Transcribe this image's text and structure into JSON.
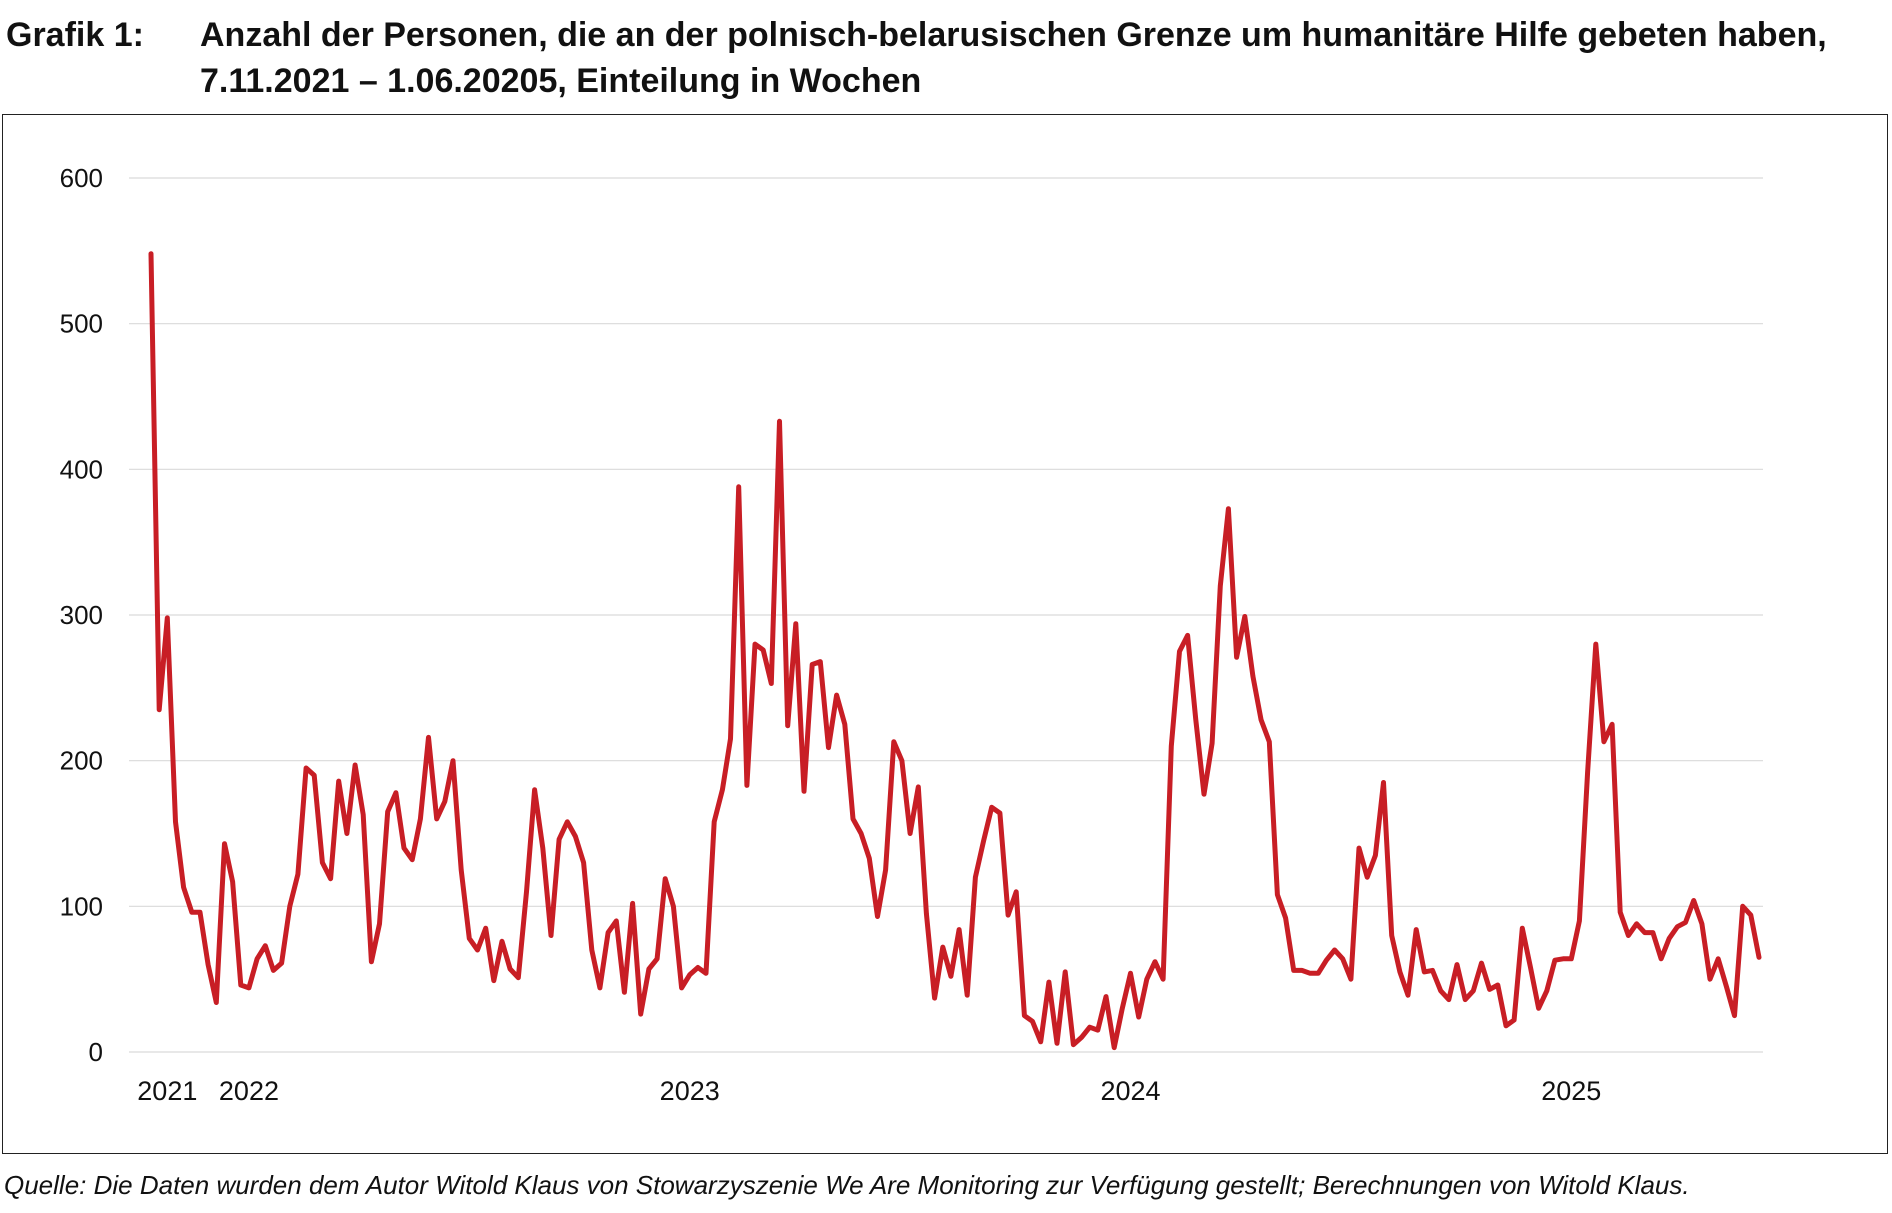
{
  "caption": {
    "label": "Grafik 1:",
    "line1": "Anzahl der Personen, die an der polnisch-belarusischen Grenze um humanitäre Hilfe gebeten haben,",
    "line2": "7.11.2021 – 1.06.20205, Einteilung in Wochen"
  },
  "source": "Quelle: Die Daten wurden dem Autor Witold Klaus von Stowarzyszenie We Are Monitoring zur Verfügung gestellt; Berechnungen von Witold Klaus.",
  "colors": {
    "line": "#c81e25",
    "grid": "#d9d9d9",
    "text": "#111111"
  },
  "chart_data": {
    "type": "line",
    "title": "",
    "xlabel": "",
    "ylabel": "",
    "ylim": [
      0,
      600
    ],
    "yticks": [
      0,
      100,
      200,
      300,
      400,
      500,
      600
    ],
    "grid": true,
    "legend": "none",
    "x_start": "2021-11-07",
    "x_step": "1 week",
    "x_tick_labels": [
      {
        "label": "2021",
        "week_index": 2
      },
      {
        "label": "2022",
        "week_index": 12
      },
      {
        "label": "2023",
        "week_index": 66
      },
      {
        "label": "2024",
        "week_index": 120
      },
      {
        "label": "2025",
        "week_index": 174
      }
    ],
    "series": [
      {
        "values": [
          548,
          235,
          298,
          158,
          113,
          96,
          96,
          60,
          34,
          143,
          117,
          46,
          44,
          64,
          73,
          56,
          61,
          100,
          122,
          195,
          190,
          130,
          119,
          186,
          150,
          197,
          163,
          62,
          88,
          165,
          178,
          140,
          132,
          160,
          216,
          160,
          172,
          200,
          125,
          78,
          70,
          85,
          49,
          76,
          57,
          51,
          110,
          180,
          140,
          80,
          146,
          158,
          148,
          130,
          70,
          44,
          82,
          90,
          41,
          102,
          26,
          57,
          64,
          119,
          100,
          44,
          53,
          58,
          54,
          158,
          180,
          215,
          388,
          183,
          280,
          276,
          253,
          433,
          224,
          294,
          179,
          266,
          268,
          209,
          245,
          225,
          160,
          150,
          133,
          93,
          125,
          213,
          200,
          150,
          182,
          95,
          37,
          72,
          52,
          84,
          39,
          120,
          145,
          168,
          164,
          94,
          110,
          25,
          21,
          7,
          48,
          6,
          55,
          5,
          10,
          17,
          15,
          38,
          3,
          30,
          54,
          24,
          50,
          62,
          50,
          210,
          275,
          286,
          228,
          177,
          212,
          320,
          373,
          271,
          299,
          258,
          228,
          213,
          108,
          92,
          56,
          56,
          54,
          54,
          63,
          70,
          64,
          50,
          140,
          120,
          135,
          185,
          80,
          55,
          39,
          84,
          55,
          56,
          42,
          36,
          60,
          36,
          42,
          61,
          43,
          46,
          18,
          22,
          85,
          58,
          30,
          42,
          63,
          64,
          64,
          90,
          192,
          280,
          213,
          225,
          96,
          80,
          88,
          82,
          82,
          64,
          78,
          86,
          89,
          104,
          88,
          50,
          64,
          45,
          25,
          100,
          94,
          65
        ]
      }
    ]
  }
}
